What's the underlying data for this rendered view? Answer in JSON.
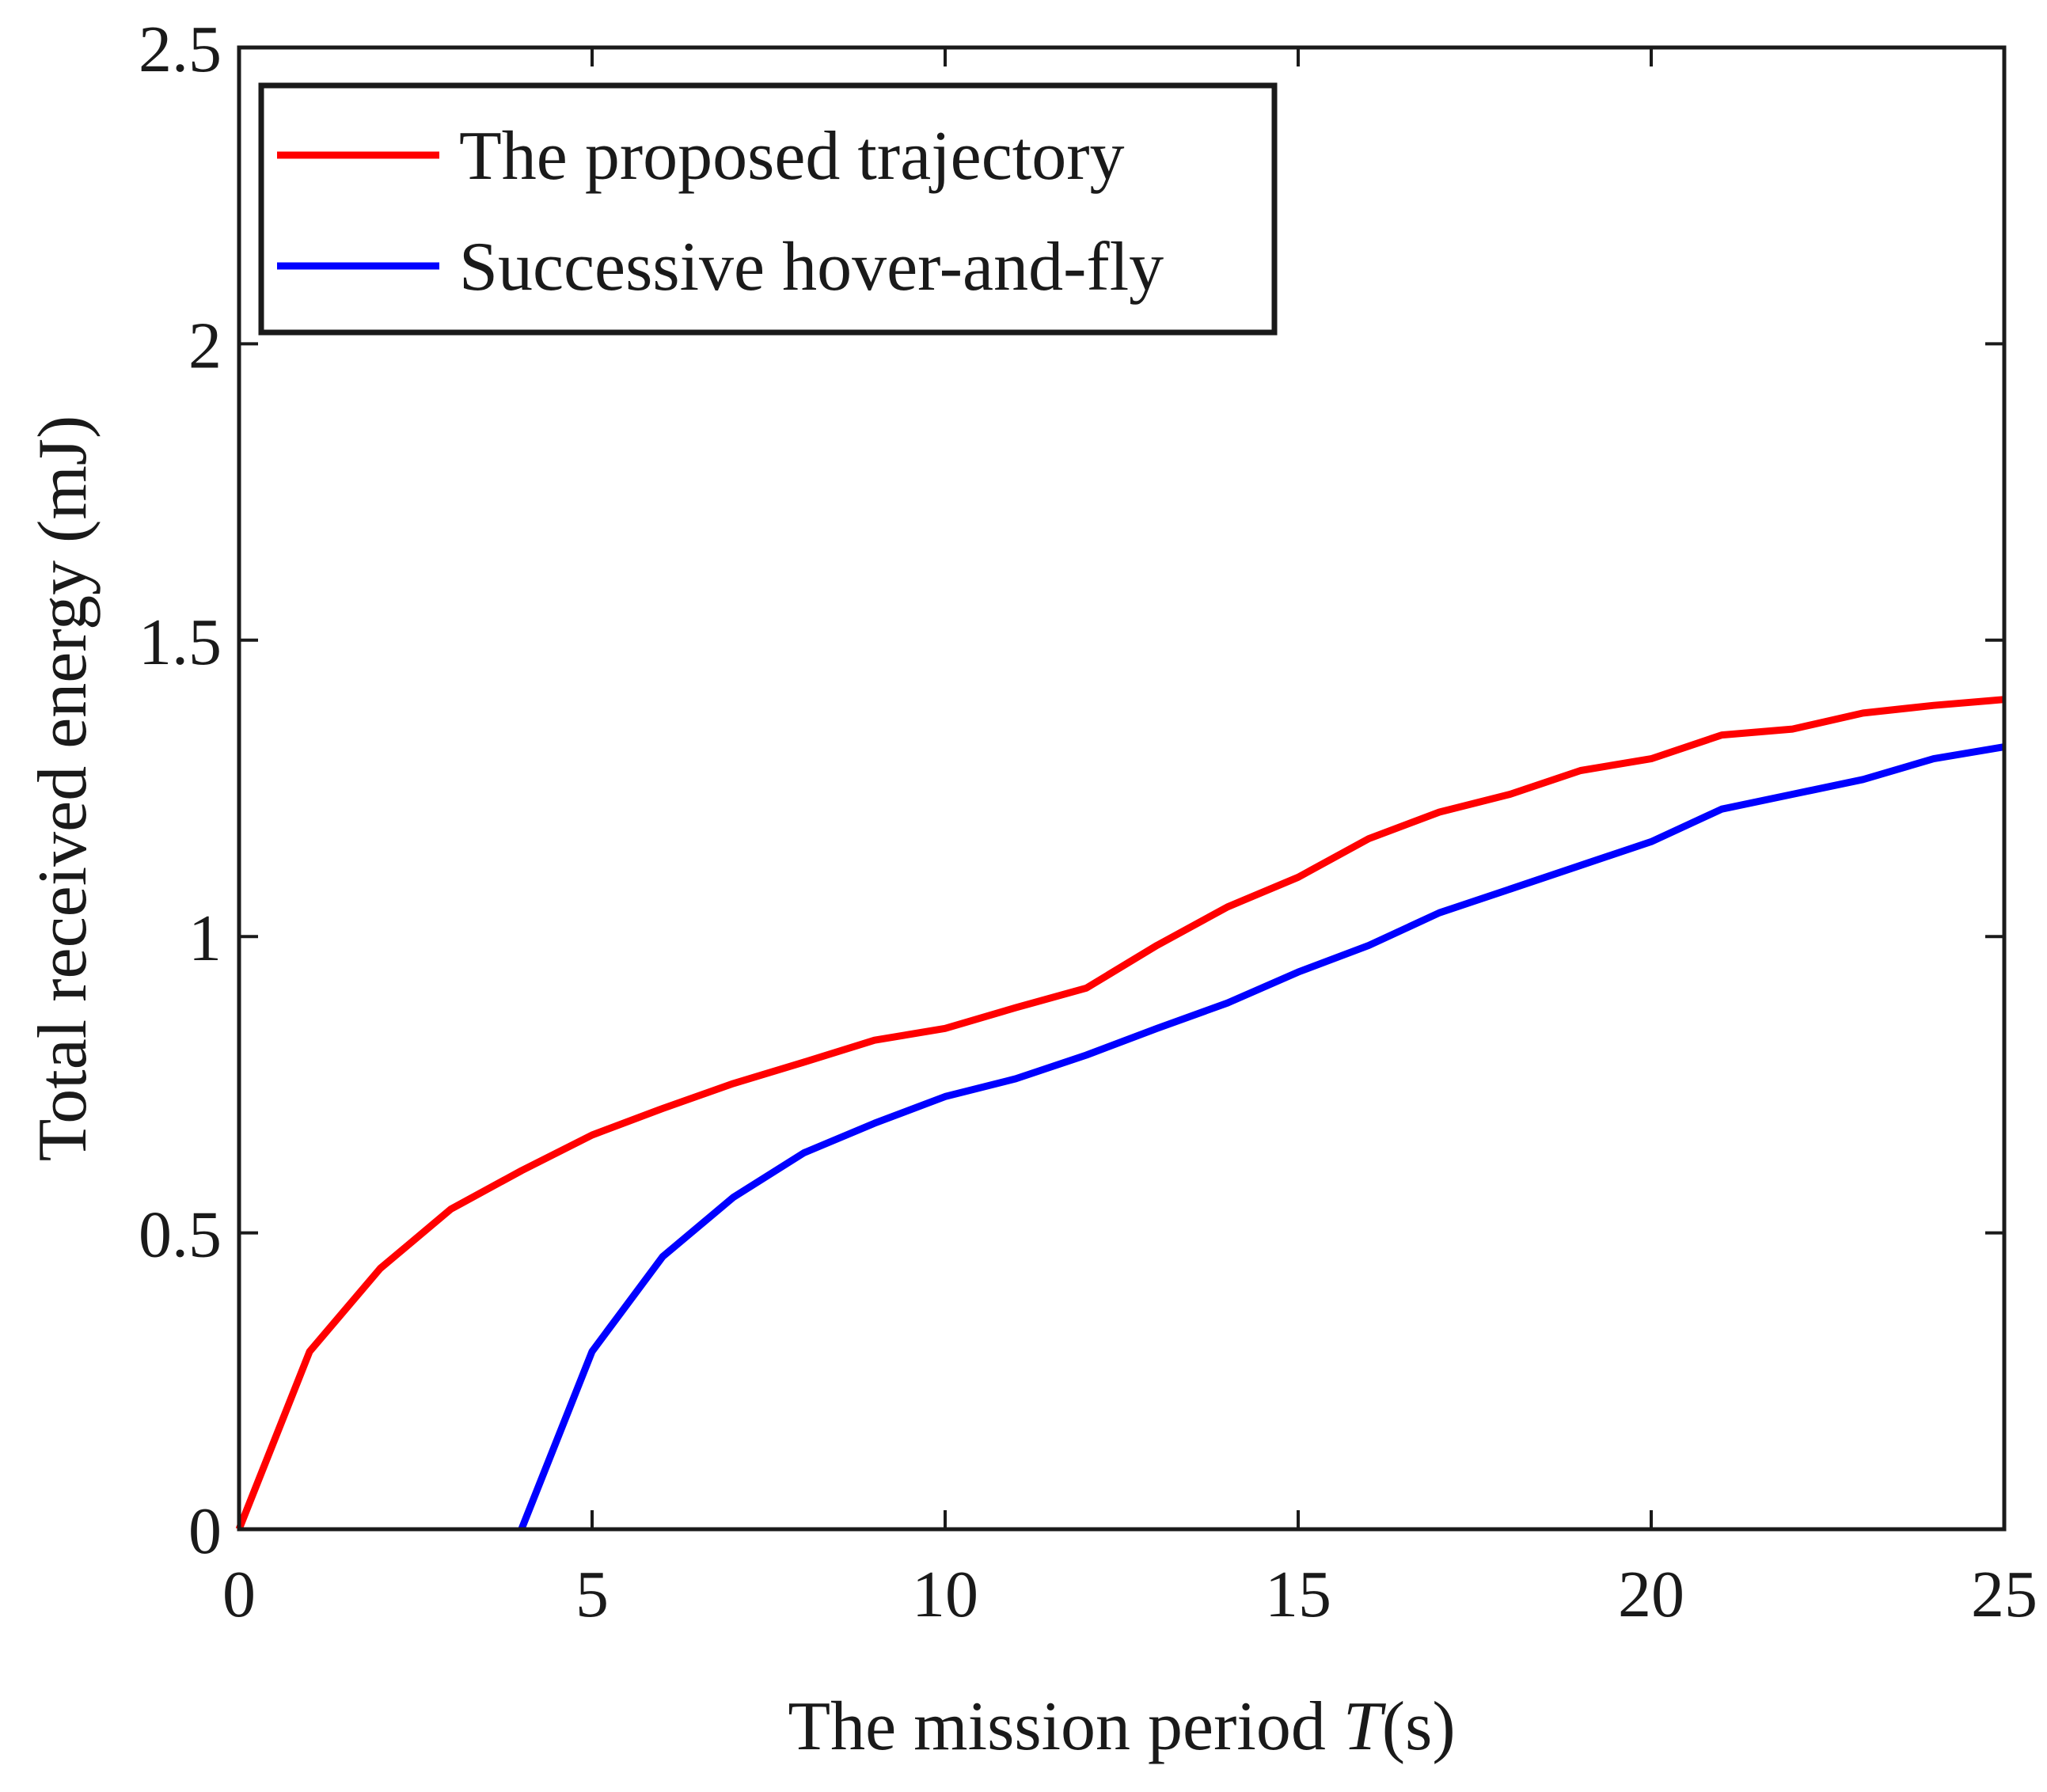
{
  "chart_data": {
    "type": "line",
    "title": "",
    "xlabel": {
      "prefix": "The mission period ",
      "italic": "T",
      "suffix": "(s)"
    },
    "ylabel": "Total received energy (mJ)",
    "xlim": [
      0,
      25
    ],
    "ylim": [
      0,
      2.5
    ],
    "xticks": [
      0,
      5,
      10,
      15,
      20,
      25
    ],
    "xtick_labels": [
      "0",
      "5",
      "10",
      "15",
      "20",
      "25"
    ],
    "yticks": [
      0,
      0.5,
      1,
      1.5,
      2,
      2.5
    ],
    "ytick_labels": [
      "0",
      "0.5",
      "1",
      "1.5",
      "2",
      "2.5"
    ],
    "grid": false,
    "legend_position": "top-left",
    "series": [
      {
        "name": "The proposed trajectory",
        "color": "#ff0000",
        "x": [
          0,
          1,
          2,
          3,
          4,
          5,
          6,
          7,
          8,
          9,
          10,
          11,
          12,
          13,
          14,
          15,
          16,
          17,
          18,
          19,
          20,
          21,
          22,
          23,
          24,
          25
        ],
        "y": [
          0,
          0.3,
          0.44,
          0.54,
          0.605,
          0.665,
          0.71,
          0.752,
          0.788,
          0.825,
          0.845,
          0.88,
          0.913,
          0.985,
          1.05,
          1.1,
          1.165,
          1.21,
          1.24,
          1.28,
          1.3,
          1.34,
          1.35,
          1.377,
          1.39,
          1.4
        ]
      },
      {
        "name": "Successive hover-and-fly",
        "color": "#0000ff",
        "x": [
          4,
          5,
          6,
          7,
          8,
          9,
          10,
          11,
          12,
          13,
          14,
          15,
          16,
          17,
          18,
          19,
          20,
          21,
          22,
          23,
          24,
          25
        ],
        "y": [
          0,
          0.3,
          0.46,
          0.56,
          0.635,
          0.685,
          0.73,
          0.76,
          0.8,
          0.845,
          0.888,
          0.94,
          0.985,
          1.04,
          1.08,
          1.12,
          1.16,
          1.215,
          1.24,
          1.265,
          1.3,
          1.32
        ]
      }
    ]
  }
}
